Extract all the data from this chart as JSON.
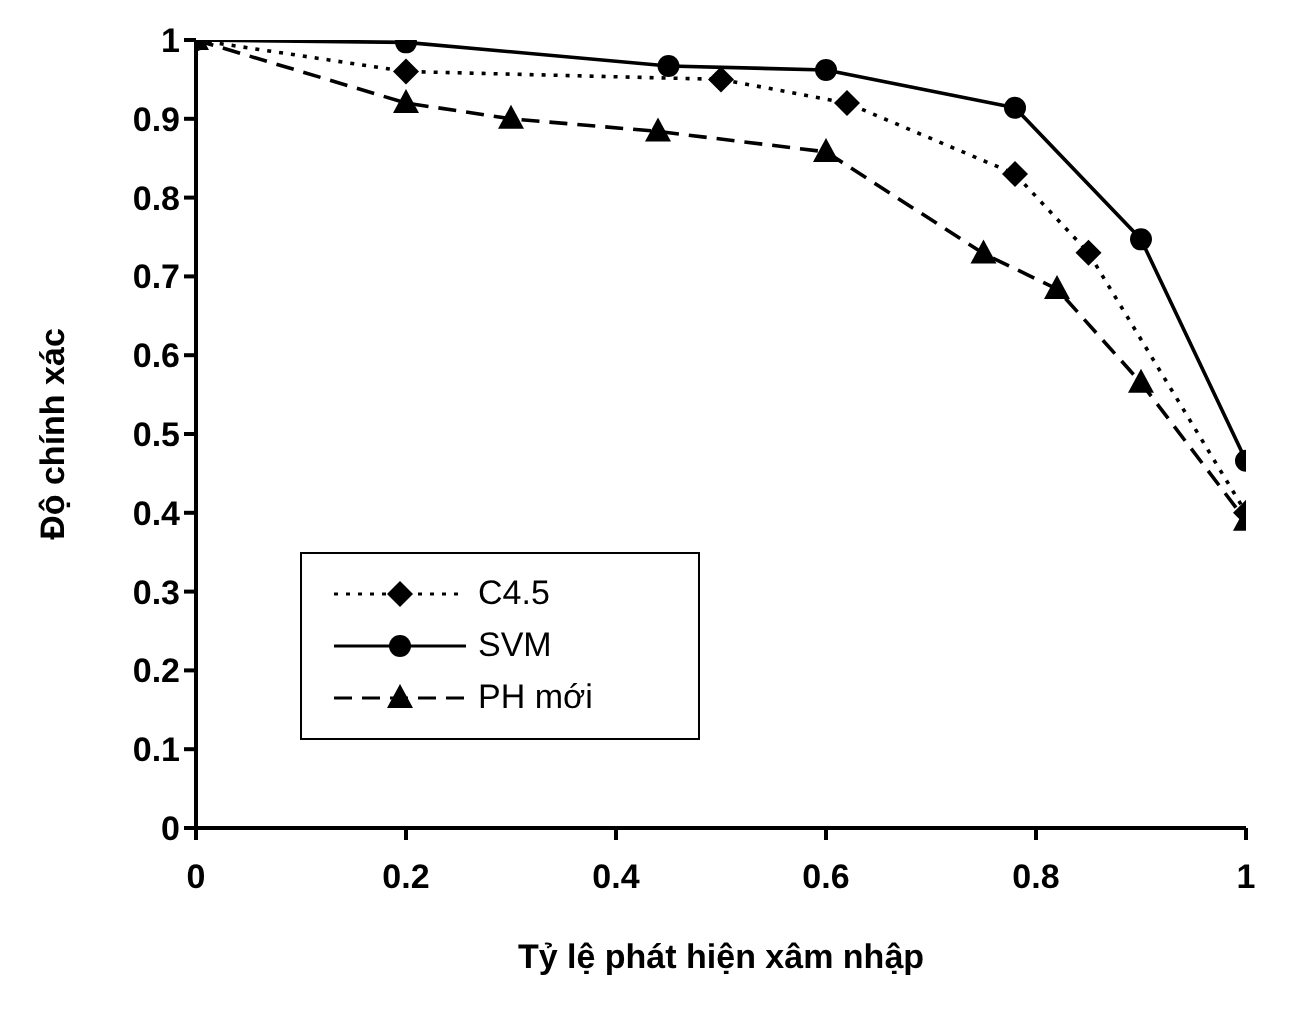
{
  "chart_data": {
    "type": "line",
    "xlabel": "Tỷ lệ phát hiện xâm nhập",
    "ylabel": "Độ chính xác",
    "xlim": [
      0,
      1
    ],
    "ylim": [
      0,
      1
    ],
    "xticks": [
      0,
      0.2,
      0.4,
      0.6,
      0.8,
      1
    ],
    "yticks": [
      0,
      0.1,
      0.2,
      0.3,
      0.4,
      0.5,
      0.6,
      0.7,
      0.8,
      0.9,
      1
    ],
    "grid": false,
    "legend": "bottom left",
    "series": [
      {
        "name": "C4.5",
        "color": "#000000",
        "marker": "diamond",
        "line_style": "dotted",
        "x": [
          0,
          0.2,
          0.5,
          0.62,
          0.78,
          0.85,
          1
        ],
        "values": [
          1,
          0.96,
          0.95,
          0.92,
          0.83,
          0.73,
          0.4
        ]
      },
      {
        "name": "SVM",
        "color": "#000000",
        "marker": "circle",
        "line_style": "solid",
        "x": [
          0,
          0.2,
          0.45,
          0.6,
          0.78,
          0.9,
          1
        ],
        "values": [
          1,
          0.997,
          0.967,
          0.962,
          0.914,
          0.747,
          0.466
        ]
      },
      {
        "name": "PH mới",
        "color": "#000000",
        "marker": "triangle",
        "line_style": "dashed",
        "x": [
          0,
          0.2,
          0.3,
          0.44,
          0.6,
          0.75,
          0.82,
          0.9,
          1
        ],
        "values": [
          1,
          0.92,
          0.9,
          0.884,
          0.858,
          0.729,
          0.684,
          0.565,
          0.39
        ]
      }
    ]
  }
}
